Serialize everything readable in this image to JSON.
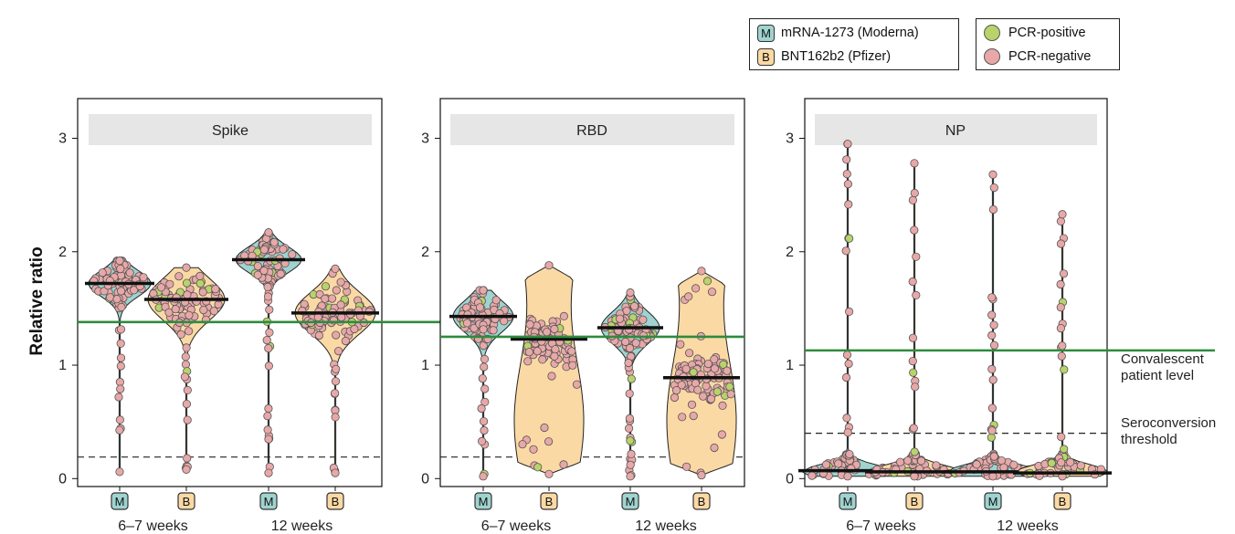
{
  "legend": {
    "vaccines": [
      {
        "badge": "M",
        "label": "mRNA-1273 (Moderna)",
        "color": "#9fd3cf"
      },
      {
        "badge": "B",
        "label": "BNT162b2 (Pfizer)",
        "color": "#fbd9a5"
      }
    ],
    "pcr": [
      {
        "label": "PCR-positive",
        "color": "#b8d36a"
      },
      {
        "label": "PCR-negative",
        "color": "#e8a8a8"
      }
    ]
  },
  "colors": {
    "moderna_violin": "#9fd3cf",
    "pfizer_violin": "#fbd9a5",
    "pcr_positive": "#b8d36a",
    "pcr_negative": "#e8a8a8",
    "convalescent_line": "#2e8b3e",
    "strip": "#e6e6e6"
  },
  "chart_data": {
    "type": "violin",
    "ylabel": "Relative ratio",
    "ylim": [
      -0.07,
      3.35
    ],
    "yticks": [
      0,
      1,
      2,
      3
    ],
    "groups": [
      {
        "badge": "M",
        "vaccine": "mRNA-1273 (Moderna)"
      },
      {
        "badge": "B",
        "vaccine": "BNT162b2 (Pfizer)"
      },
      {
        "badge": "M",
        "vaccine": "mRNA-1273 (Moderna)"
      },
      {
        "badge": "B",
        "vaccine": "BNT162b2 (Pfizer)"
      }
    ],
    "timepoints": [
      "6–7 weeks",
      "12 weeks"
    ],
    "panels": [
      {
        "title": "Spike",
        "convalescent": 1.38,
        "seroconversion": 0.19,
        "medians": [
          1.72,
          1.58,
          1.93,
          1.46
        ],
        "ranges": [
          [
            0.06,
            1.92
          ],
          [
            0.08,
            1.86
          ],
          [
            0.05,
            2.17
          ],
          [
            0.05,
            1.85
          ]
        ]
      },
      {
        "title": "RBD",
        "convalescent": 1.25,
        "seroconversion": 0.19,
        "medians": [
          1.43,
          1.23,
          1.33,
          0.89
        ],
        "ranges": [
          [
            0.02,
            1.66
          ],
          [
            0.04,
            1.88
          ],
          [
            0.02,
            1.64
          ],
          [
            0.03,
            1.83
          ]
        ]
      },
      {
        "title": "NP",
        "convalescent": 1.13,
        "seroconversion": 0.4,
        "medians": [
          0.07,
          0.06,
          0.06,
          0.05
        ],
        "ranges": [
          [
            0.02,
            2.95
          ],
          [
            0.02,
            2.78
          ],
          [
            0.02,
            2.68
          ],
          [
            0.02,
            2.33
          ]
        ]
      }
    ],
    "annotations": [
      "Convalescent\npatient level",
      "Seroconversion\nthreshold"
    ]
  }
}
